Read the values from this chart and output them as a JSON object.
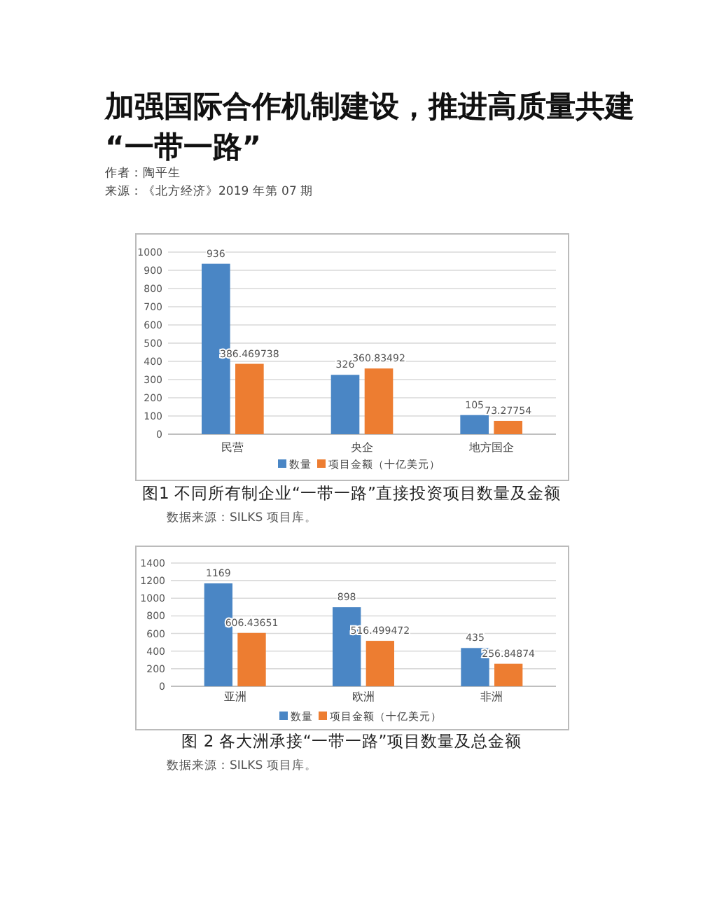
{
  "chart_data": [
    {
      "type": "bar",
      "title": "图1 不同所有制企业“一带一路”直接投资项目数量及金额",
      "annotations": [
        "加强国际合作机制建设，推进高质量共建“一带一路”",
        "作者：陶平生",
        "来源：《北方经济》2019 年第 07 期",
        "数据来源：SILKS 项目库。"
      ],
      "categories": [
        "民营",
        "央企",
        "地方国企"
      ],
      "series": [
        {
          "name": "数量",
          "color": "#4a86c5",
          "values": [
            936,
            326,
            105
          ]
        },
        {
          "name": "项目金额（十亿美元）",
          "color": "#ed7d31",
          "values": [
            386.469738,
            360.83492,
            73.27754
          ]
        }
      ],
      "ylim": [
        0,
        1000
      ],
      "yticks": [
        0,
        100,
        200,
        300,
        400,
        500,
        600,
        700,
        800,
        900,
        1000
      ],
      "grid": "y",
      "legend": "bottom",
      "data_labels": true
    },
    {
      "type": "bar",
      "title": "图 2 各大洲承接“一带一路”项目数量及总金额",
      "annotations": [
        "数据来源：SILKS 项目库。"
      ],
      "categories": [
        "亚洲",
        "欧洲",
        "非洲"
      ],
      "series": [
        {
          "name": "数量",
          "color": "#4a86c5",
          "values": [
            1169,
            898,
            435
          ]
        },
        {
          "name": "项目金额（十亿美元）",
          "color": "#ed7d31",
          "values": [
            606.43651,
            516.499472,
            256.84874
          ]
        }
      ],
      "ylim": [
        0,
        1400
      ],
      "yticks": [
        0,
        200,
        400,
        600,
        800,
        1000,
        1200,
        1400
      ],
      "grid": "y",
      "legend": "bottom",
      "data_labels": true
    }
  ]
}
